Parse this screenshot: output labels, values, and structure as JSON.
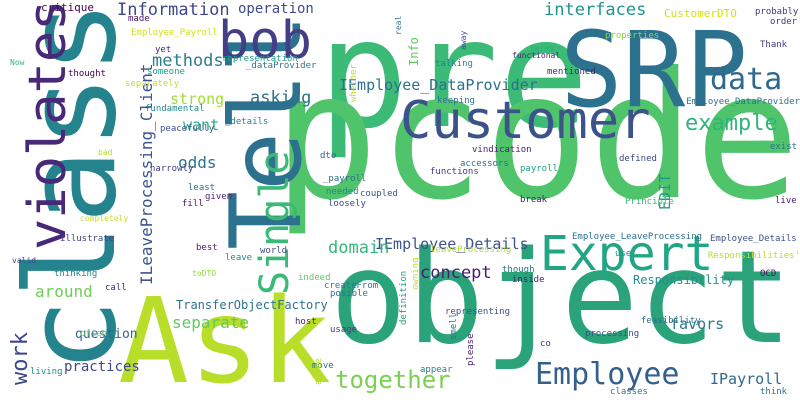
{
  "words": [
    {
      "text": "pre",
      "color": "#3bbb75"
    },
    {
      "text": "pcode",
      "color": "#50c46a"
    },
    {
      "text": "object",
      "color": "#2aa27a"
    },
    {
      "text": "Ask",
      "color": "#b8de29"
    },
    {
      "text": "class",
      "color": "#25838e"
    },
    {
      "text": "Tell",
      "color": "#2c728e"
    },
    {
      "text": "SRP",
      "color": "#2c728e"
    },
    {
      "text": "Customer",
      "color": "#3b528b"
    },
    {
      "text": "Expert",
      "color": "#21a585"
    },
    {
      "text": "bob",
      "color": "#433e85"
    },
    {
      "text": "violates",
      "color": "#482878"
    },
    {
      "text": "Single",
      "color": "#3aba76"
    },
    {
      "text": "Employee",
      "color": "#355f8d"
    },
    {
      "text": "together",
      "color": "#7ad151"
    },
    {
      "text": "data",
      "color": "#31688e"
    },
    {
      "text": "work",
      "color": "#3e4989"
    },
    {
      "text": "example",
      "color": "#2fb47c"
    },
    {
      "text": "Information",
      "color": "#3f4788"
    },
    {
      "text": "operation",
      "color": "#3e4c8a"
    },
    {
      "text": "interfaces",
      "color": "#1f968b"
    },
    {
      "text": "CustomerDTO",
      "color": "#d0e11c"
    },
    {
      "text": "methods",
      "color": "#287d8e"
    },
    {
      "text": "strong",
      "color": "#a5db36"
    },
    {
      "text": "want",
      "color": "#25ab82"
    },
    {
      "text": "asking",
      "color": "#2d718e"
    },
    {
      "text": "odds",
      "color": "#2b748e"
    },
    {
      "text": "IEmployee_DataProvider",
      "color": "#2d708e"
    },
    {
      "text": "Info",
      "color": "#5ec962"
    },
    {
      "text": "ILeaveProcessing_Client",
      "color": "#3a548c"
    },
    {
      "text": "EDIT",
      "color": "#1e9b8a"
    },
    {
      "text": "IEmployee_Details",
      "color": "#3b528b"
    },
    {
      "text": "domain",
      "color": "#35b779"
    },
    {
      "text": "concept",
      "color": "#481b6d"
    },
    {
      "text": "around",
      "color": "#6ece58"
    },
    {
      "text": "separate",
      "color": "#5ec962"
    },
    {
      "text": "TransferObjectFactory",
      "color": "#2c738e"
    },
    {
      "text": "question",
      "color": "#31688e"
    },
    {
      "text": "practices",
      "color": "#3f4889"
    },
    {
      "text": "favors",
      "color": "#2a788e"
    },
    {
      "text": "IPayroll",
      "color": "#30698e"
    },
    {
      "text": "Responsibility",
      "color": "#21918c"
    },
    {
      "text": "critique",
      "color": "#440154"
    },
    {
      "text": "made",
      "color": "#481668"
    },
    {
      "text": "Employee_Payroll",
      "color": "#d2e21b"
    },
    {
      "text": "yet",
      "color": "#482677"
    },
    {
      "text": "someone",
      "color": "#1f9e89"
    },
    {
      "text": "Now",
      "color": "#35b779"
    },
    {
      "text": "thought",
      "color": "#440154"
    },
    {
      "text": "fundamental",
      "color": "#24878e"
    },
    {
      "text": "peacefully",
      "color": "#3b528b"
    },
    {
      "text": "bad",
      "color": "#b5de2b"
    },
    {
      "text": "narrowly",
      "color": "#423f85"
    },
    {
      "text": "least",
      "color": "#2e6d8e"
    },
    {
      "text": "given",
      "color": "#481f70"
    },
    {
      "text": "fill",
      "color": "#471164"
    },
    {
      "text": "completely",
      "color": "#c0df25"
    },
    {
      "text": "illustrate",
      "color": "#414487"
    },
    {
      "text": "valid",
      "color": "#3e4a89"
    },
    {
      "text": "thinking",
      "color": "#24868e"
    },
    {
      "text": "call",
      "color": "#482878"
    },
    {
      "text": "toDTO",
      "color": "#90d743"
    },
    {
      "text": "often",
      "color": "#67cc5c"
    },
    {
      "text": "living",
      "color": "#228b8d"
    },
    {
      "text": "leave",
      "color": "#24878e"
    },
    {
      "text": "best",
      "color": "#482273"
    },
    {
      "text": "world",
      "color": "#3e4989"
    },
    {
      "text": "indeed",
      "color": "#5ec962"
    },
    {
      "text": "createFrom",
      "color": "#2a768e"
    },
    {
      "text": "host",
      "color": "#482475"
    },
    {
      "text": "usage",
      "color": "#443983"
    },
    {
      "text": "posible",
      "color": "#2c728e"
    },
    {
      "text": "_details",
      "color": "#24868e"
    },
    {
      "text": "_dataProvider",
      "color": "#2b758e"
    },
    {
      "text": "representation",
      "color": "#1f9a8a"
    },
    {
      "text": "separately",
      "color": "#c2df23"
    },
    {
      "text": "whether",
      "color": "#bddf26"
    },
    {
      "text": "real",
      "color": "#2a778e"
    },
    {
      "text": "away",
      "color": "#3b528b"
    },
    {
      "text": "talking",
      "color": "#25848e"
    },
    {
      "text": "terms",
      "color": "#26ad81"
    },
    {
      "text": "mentioned",
      "color": "#481f70"
    },
    {
      "text": "functional",
      "color": "#482979"
    },
    {
      "text": "keeping",
      "color": "#2d718e"
    },
    {
      "text": "properties",
      "color": "#8bd646"
    },
    {
      "text": "probably",
      "color": "#453781"
    },
    {
      "text": "order",
      "color": "#46327e"
    },
    {
      "text": "Thank",
      "color": "#453882"
    },
    {
      "text": "Employee_DataProvider",
      "color": "#2d708e"
    },
    {
      "text": "defined",
      "color": "#3e4a89"
    },
    {
      "text": "exist",
      "color": "#2c738e"
    },
    {
      "text": "live",
      "color": "#481b6d"
    },
    {
      "text": "Principle",
      "color": "#35b779"
    },
    {
      "text": "Employee_Details",
      "color": "#3b528b"
    },
    {
      "text": "Employee_LeaveProcessing",
      "color": "#2e6e8e"
    },
    {
      "text": "Responsibilities'",
      "color": "#bade28"
    },
    {
      "text": "OCD",
      "color": "#481769"
    },
    {
      "text": "use",
      "color": "#238a8d"
    },
    {
      "text": "functions",
      "color": "#443a83"
    },
    {
      "text": "accessors",
      "color": "#2d718e"
    },
    {
      "text": "vindication",
      "color": "#482374"
    },
    {
      "text": "payroll",
      "color": "#20a486"
    },
    {
      "text": "break",
      "color": "#482071"
    },
    {
      "text": "dto",
      "color": "#355f8d"
    },
    {
      "text": "_payroll",
      "color": "#2e6e8e"
    },
    {
      "text": "needed",
      "color": "#24878e"
    },
    {
      "text": "loosely",
      "color": "#3e4a89"
    },
    {
      "text": "coupled",
      "color": "#38588c"
    },
    {
      "text": "representing",
      "color": "#3c508b"
    },
    {
      "text": "leaveProcessing",
      "color": "#b2dd2d"
    },
    {
      "text": "inside",
      "color": "#481b6d"
    },
    {
      "text": "though",
      "color": "#2c738e"
    },
    {
      "text": "definition",
      "color": "#1fa088"
    },
    {
      "text": "owning",
      "color": "#bddf26"
    },
    {
      "text": "smell",
      "color": "#2b748e"
    },
    {
      "text": "move",
      "color": "#2c738e"
    },
    {
      "text": "please",
      "color": "#482173"
    },
    {
      "text": "appear",
      "color": "#26818e"
    },
    {
      "text": "agree",
      "color": "#b5de2b"
    },
    {
      "text": "co",
      "color": "#46337f"
    },
    {
      "text": "processing",
      "color": "#3b528b"
    },
    {
      "text": "feasibility",
      "color": "#2e6d8e"
    },
    {
      "text": "classes",
      "color": "#2a788e"
    },
    {
      "text": "think",
      "color": "#2e6e8e"
    }
  ]
}
